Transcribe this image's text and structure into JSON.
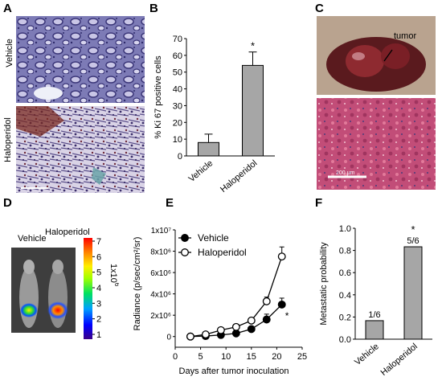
{
  "panels": {
    "A": {
      "letter": "A",
      "row_labels": [
        "Vehicle",
        "Haloperidol"
      ]
    },
    "B": {
      "letter": "B",
      "asterisk": "*"
    },
    "C": {
      "letter": "C",
      "annotation": "tumor",
      "scale_text": "200 μm"
    },
    "D": {
      "letter": "D",
      "group_labels": [
        "Vehicle",
        "Haloperidol"
      ],
      "colorbar_ticks": [
        "7",
        "6",
        "5",
        "4",
        "3",
        "2",
        "1"
      ],
      "colorbar_unit_base": "1x10",
      "colorbar_unit_exp": "6"
    },
    "E": {
      "letter": "E",
      "asterisk": "*"
    },
    "F": {
      "letter": "F",
      "asterisk": "*"
    }
  },
  "chart_data": [
    {
      "panel": "B",
      "type": "bar",
      "categories": [
        "Vehicle",
        "Haloperidol"
      ],
      "values": [
        8,
        54
      ],
      "errors": [
        5,
        8
      ],
      "ylabel": "% Ki 67 positive cells",
      "ylim": [
        0,
        70
      ],
      "yticks": [
        "0",
        "10",
        "20",
        "30",
        "40",
        "50",
        "60",
        "70"
      ],
      "bar_color": "#a6a6a6",
      "significance": [
        null,
        "*"
      ]
    },
    {
      "panel": "E",
      "type": "line",
      "xlabel": "Days after tumor inoculation",
      "ylabel": "Radiance (p/sec/cm²/sr)",
      "xlim": [
        0,
        25
      ],
      "ylim": [
        -1000000,
        10000000
      ],
      "xticks": [
        "0",
        "5",
        "10",
        "15",
        "20",
        "25"
      ],
      "yticks": [
        "1x10⁷",
        "8x10⁶",
        "6x10⁶",
        "4x10⁶",
        "2x10⁶",
        "0"
      ],
      "legend_position": "top-left",
      "series": [
        {
          "name": "Vehicle",
          "marker": "filled-circle",
          "x": [
            3,
            6,
            9,
            12,
            15,
            18,
            21
          ],
          "y": [
            0,
            50000,
            150000,
            300000,
            700000,
            1600000,
            3000000
          ],
          "err": [
            0,
            0,
            0,
            0,
            200000,
            500000,
            600000
          ]
        },
        {
          "name": "Haloperidol",
          "marker": "open-circle",
          "x": [
            3,
            6,
            9,
            12,
            15,
            18,
            21
          ],
          "y": [
            0,
            200000,
            600000,
            900000,
            1500000,
            3300000,
            7500000
          ],
          "err": [
            0,
            0,
            0,
            0,
            200000,
            400000,
            900000
          ]
        }
      ],
      "significance_note": "*"
    },
    {
      "panel": "F",
      "type": "bar",
      "categories": [
        "Vehicle",
        "Haloperidol"
      ],
      "values": [
        0.167,
        0.833
      ],
      "data_labels": [
        "1/6",
        "5/6"
      ],
      "ylabel": "Metastatic probability",
      "ylim": [
        0,
        1.0
      ],
      "yticks": [
        "0.0",
        "0.2",
        "0.4",
        "0.6",
        "0.8",
        "1.0"
      ],
      "bar_color": "#a6a6a6",
      "significance": [
        null,
        "*"
      ]
    }
  ]
}
